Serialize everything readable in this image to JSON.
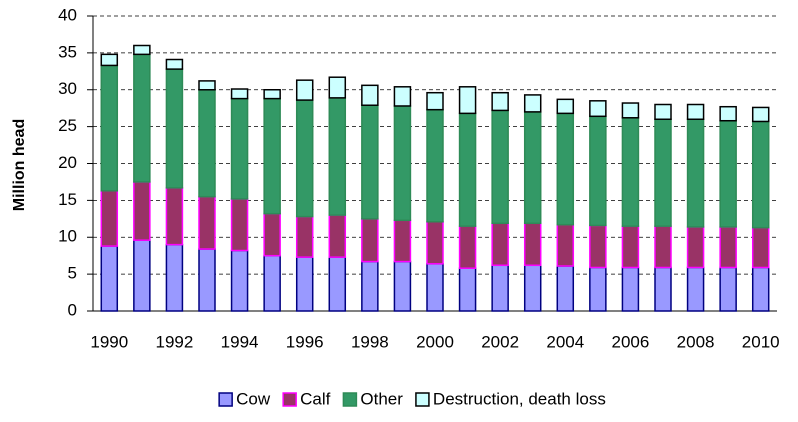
{
  "chart_data": {
    "type": "stacked_bar",
    "y_label": "Million head",
    "categories": [
      "1990",
      null,
      "1992",
      null,
      "1994",
      null,
      "1996",
      null,
      "1998",
      null,
      "2000",
      null,
      "2002",
      null,
      "2004",
      null,
      "2006",
      null,
      "2008",
      null,
      "2010"
    ],
    "series": [
      {
        "name": "Cow",
        "color": "#9999ff",
        "stroke": "#000080",
        "values": [
          8.8,
          9.6,
          9.0,
          8.4,
          8.2,
          7.5,
          7.3,
          7.3,
          6.7,
          6.7,
          6.4,
          5.8,
          6.2,
          6.2,
          6.1,
          5.9,
          5.9,
          5.9,
          5.9,
          5.9,
          5.9
        ]
      },
      {
        "name": "Calf",
        "color": "#993366",
        "stroke": "#ff00ff",
        "values": [
          7.5,
          7.9,
          7.7,
          7.1,
          7.0,
          5.7,
          5.5,
          5.7,
          5.8,
          5.6,
          5.7,
          5.7,
          5.7,
          5.7,
          5.6,
          5.7,
          5.6,
          5.6,
          5.5,
          5.5,
          5.4
        ]
      },
      {
        "name": "Other",
        "color": "#339966",
        "stroke": "#2e8b57",
        "values": [
          17.0,
          17.3,
          16.1,
          14.5,
          13.6,
          15.6,
          15.8,
          15.9,
          15.4,
          15.5,
          15.2,
          15.3,
          15.3,
          15.1,
          15.1,
          14.8,
          14.7,
          14.5,
          14.6,
          14.4,
          14.4
        ]
      },
      {
        "name": "Destruction, death loss",
        "color": "#ccffff",
        "stroke": "#000000",
        "values": [
          1.5,
          1.2,
          1.3,
          1.2,
          1.3,
          1.2,
          2.7,
          2.8,
          2.7,
          2.6,
          2.3,
          3.6,
          2.4,
          2.3,
          1.9,
          2.1,
          2.0,
          2.0,
          2.0,
          1.9,
          1.9
        ]
      }
    ],
    "ylim": [
      0,
      40
    ],
    "yticks": [
      0,
      5,
      10,
      15,
      20,
      25,
      30,
      35,
      40
    ],
    "grid": true,
    "legend": "bottom"
  }
}
